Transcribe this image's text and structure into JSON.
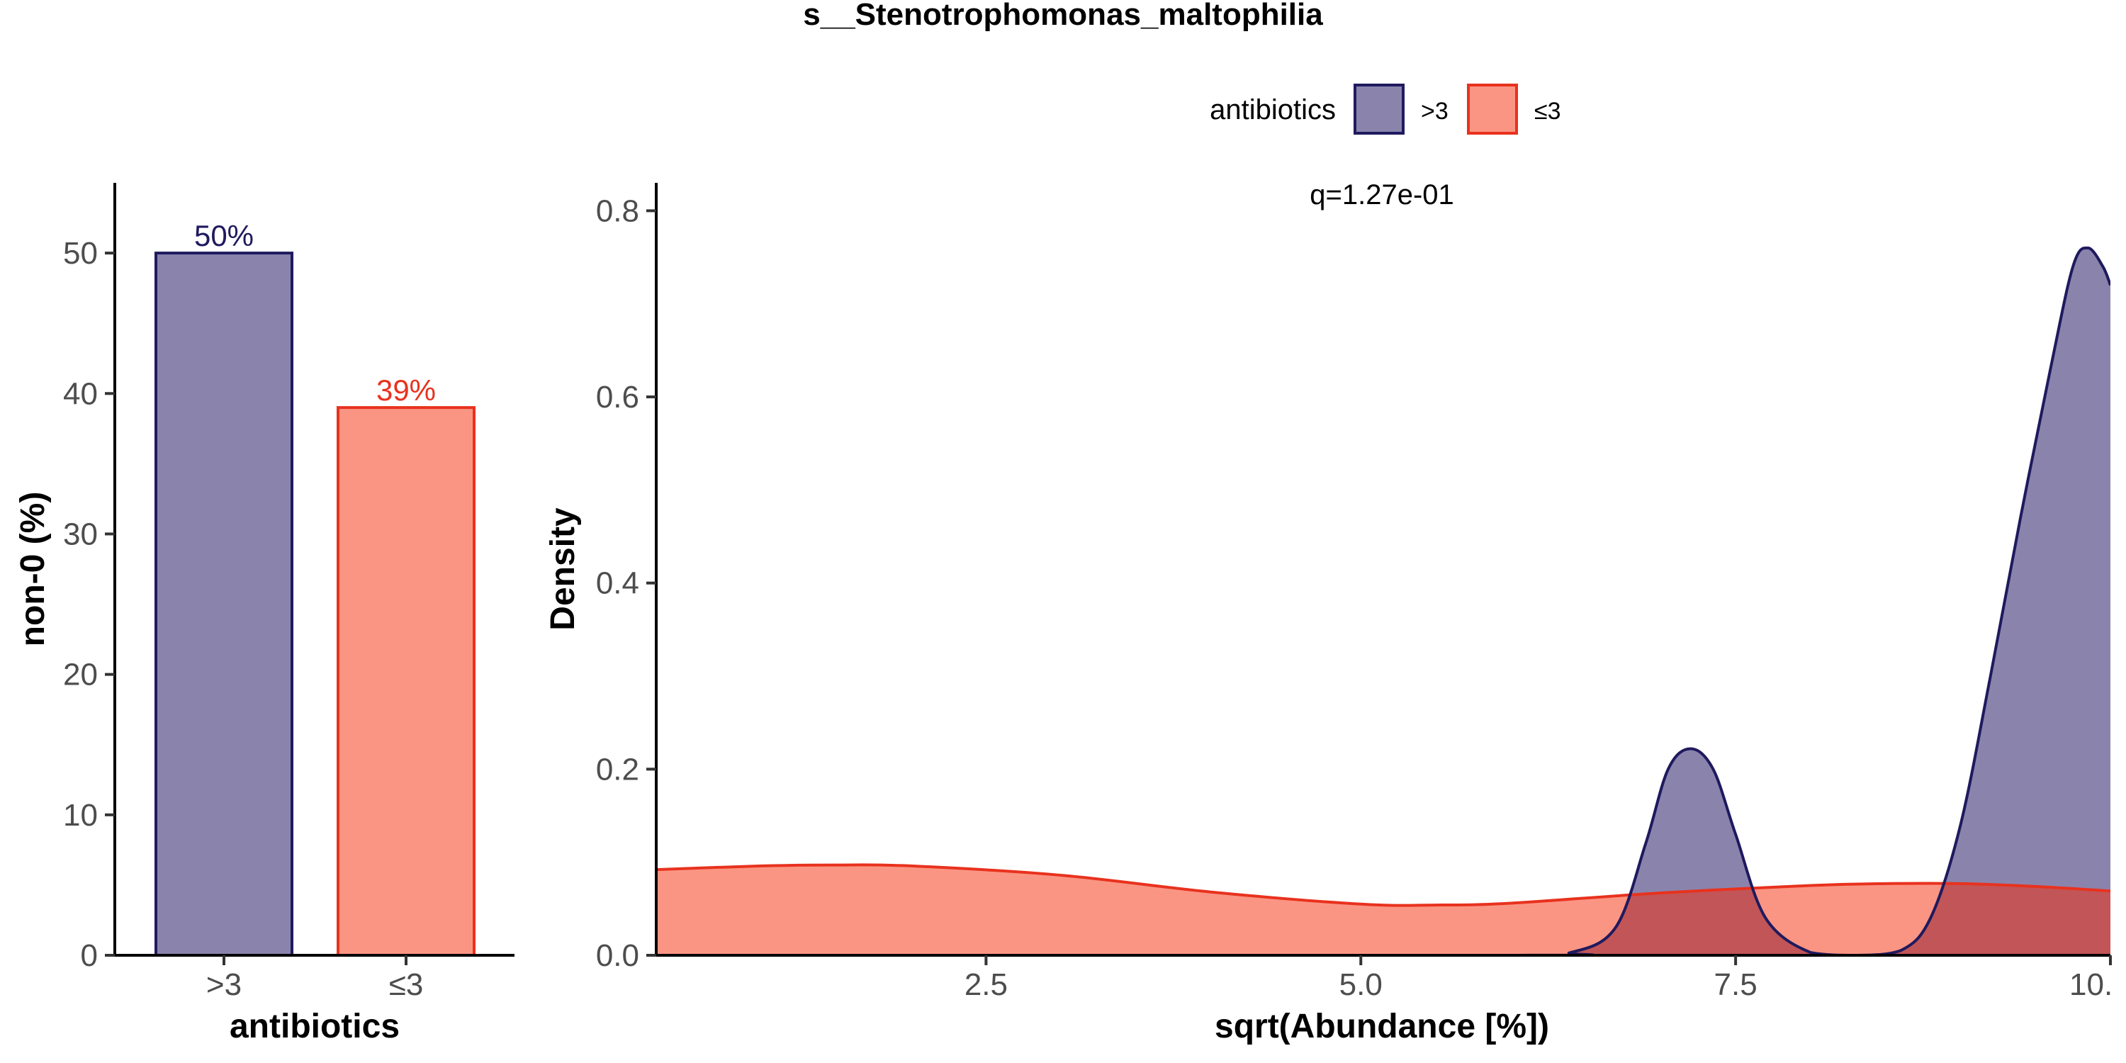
{
  "title": "s__Stenotrophomonas_maltophilia",
  "colors": {
    "gt3_fill": "#8A84AD",
    "gt3_line": "#1F1A5E",
    "le3_fill": "#FB9583",
    "le3_line": "#E8321E",
    "overlap_fill": "#C25557"
  },
  "legend": {
    "title": "antibiotics",
    "items": [
      {
        "label": ">3",
        "fill": "#8A84AD",
        "stroke": "#1F1A5E"
      },
      {
        "label": "≤3",
        "fill": "#FB9583",
        "stroke": "#E8321E"
      }
    ],
    "placement": "top"
  },
  "chart_data": [
    {
      "type": "bar",
      "categories": [
        ">3",
        "≤3"
      ],
      "values": [
        50,
        39
      ],
      "bar_labels": [
        "50%",
        "39%"
      ],
      "xlabel": "antibiotics",
      "ylabel": "non-0 (%)",
      "ylim": [
        0,
        55
      ],
      "yticks": [
        0,
        10,
        20,
        30,
        40,
        50
      ],
      "ytick_labels": [
        "0",
        "10",
        "20",
        "30",
        "40",
        "50"
      ],
      "grid": false
    },
    {
      "type": "area",
      "annotation": "q=1.27e-01",
      "xlabel": "sqrt(Abundance [%])",
      "ylabel": "Density",
      "xlim": [
        0.3,
        10.0
      ],
      "ylim": [
        0,
        0.83
      ],
      "xticks": [
        2.5,
        5.0,
        7.5,
        10.0
      ],
      "xtick_labels": [
        "2.5",
        "5.0",
        "7.5",
        "10."
      ],
      "yticks": [
        0,
        0.2,
        0.4,
        0.6,
        0.8
      ],
      "ytick_labels": [
        "0.0",
        "0.2",
        "0.4",
        "0.6",
        "0.8"
      ],
      "grid": false,
      "series": [
        {
          "name": ">3",
          "x": [
            0.3,
            6.0,
            6.4,
            6.7,
            6.9,
            7.05,
            7.2,
            7.35,
            7.5,
            7.7,
            8.0,
            8.3,
            8.6,
            8.8,
            9.0,
            9.2,
            9.4,
            9.6,
            9.75,
            9.85,
            9.95,
            10.0
          ],
          "y": [
            0,
            0,
            0.003,
            0.03,
            0.12,
            0.2,
            0.222,
            0.2,
            0.13,
            0.04,
            0.003,
            0,
            0.005,
            0.04,
            0.14,
            0.3,
            0.47,
            0.63,
            0.74,
            0.76,
            0.74,
            0.72
          ]
        },
        {
          "name": "≤3",
          "x": [
            0.3,
            1.0,
            1.5,
            2.0,
            3.0,
            4.0,
            5.0,
            5.5,
            6.0,
            7.0,
            8.0,
            8.5,
            9.0,
            9.5,
            10.0
          ],
          "y": [
            0.092,
            0.096,
            0.097,
            0.096,
            0.086,
            0.068,
            0.055,
            0.054,
            0.056,
            0.067,
            0.075,
            0.077,
            0.077,
            0.074,
            0.069
          ]
        }
      ]
    }
  ]
}
